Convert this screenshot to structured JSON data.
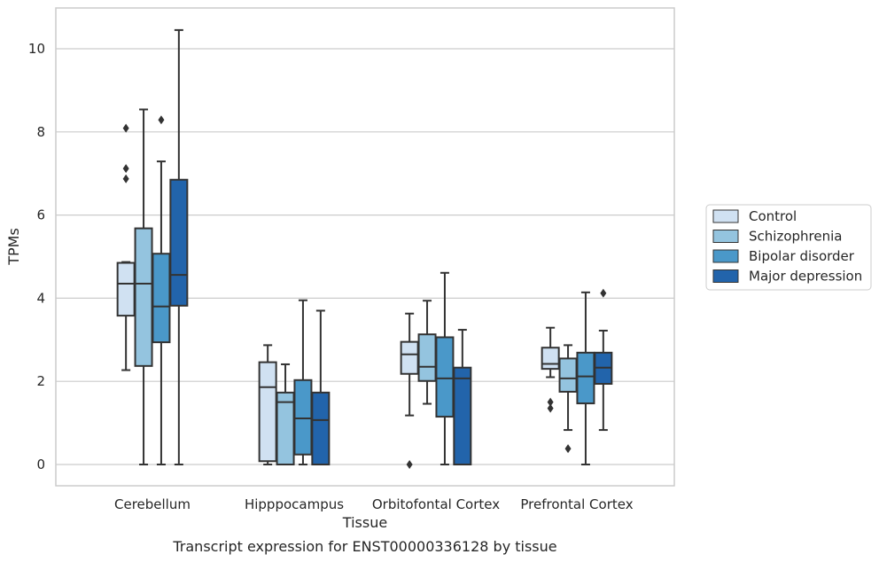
{
  "chart_data": {
    "type": "box",
    "caption": "Transcript expression for ENST00000336128 by tissue",
    "xlabel": "Tissue",
    "ylabel": "TPMs",
    "ylim": [
      -0.5,
      10.95
    ],
    "yticks": [
      0,
      2,
      4,
      6,
      8,
      10
    ],
    "grid": "horizontal",
    "legend_position": "right",
    "categories": [
      "Cerebellum",
      "Hipppocampus",
      "Orbitofontal Cortex",
      "Prefrontal Cortex"
    ],
    "series": [
      {
        "name": "Control",
        "color": "#d0e1f2",
        "boxes": [
          {
            "whisker_low": 2.27,
            "q1": 3.58,
            "median": 4.35,
            "q3": 4.85,
            "whisker_high": 4.87,
            "outliers": [
              6.87,
              7.12,
              8.09
            ]
          },
          {
            "whisker_low": 0.0,
            "q1": 0.08,
            "median": 1.86,
            "q3": 2.46,
            "whisker_high": 2.87,
            "outliers": []
          },
          {
            "whisker_low": 1.18,
            "q1": 2.18,
            "median": 2.65,
            "q3": 2.95,
            "whisker_high": 3.63,
            "outliers": [
              0.0
            ]
          },
          {
            "whisker_low": 2.1,
            "q1": 2.3,
            "median": 2.42,
            "q3": 2.81,
            "whisker_high": 3.29,
            "outliers": [
              1.35,
              1.5
            ]
          }
        ]
      },
      {
        "name": "Schizophrenia",
        "color": "#94c4df",
        "boxes": [
          {
            "whisker_low": 0.0,
            "q1": 2.37,
            "median": 4.35,
            "q3": 5.68,
            "whisker_high": 8.54,
            "outliers": []
          },
          {
            "whisker_low": 0.0,
            "q1": 0.0,
            "median": 1.5,
            "q3": 1.73,
            "whisker_high": 2.41,
            "outliers": []
          },
          {
            "whisker_low": 1.46,
            "q1": 2.01,
            "median": 2.35,
            "q3": 3.13,
            "whisker_high": 3.94,
            "outliers": []
          },
          {
            "whisker_low": 0.83,
            "q1": 1.75,
            "median": 2.07,
            "q3": 2.55,
            "whisker_high": 2.87,
            "outliers": [
              0.38
            ]
          }
        ]
      },
      {
        "name": "Bipolar disorder",
        "color": "#4a98c9",
        "boxes": [
          {
            "whisker_low": 0.0,
            "q1": 2.94,
            "median": 3.8,
            "q3": 5.07,
            "whisker_high": 7.29,
            "outliers": [
              8.29
            ]
          },
          {
            "whisker_low": 0.0,
            "q1": 0.24,
            "median": 1.11,
            "q3": 2.03,
            "whisker_high": 3.95,
            "outliers": []
          },
          {
            "whisker_low": 0.0,
            "q1": 1.15,
            "median": 2.07,
            "q3": 3.06,
            "whisker_high": 4.61,
            "outliers": []
          },
          {
            "whisker_low": 0.0,
            "q1": 1.47,
            "median": 2.12,
            "q3": 2.69,
            "whisker_high": 4.14,
            "outliers": []
          }
        ]
      },
      {
        "name": "Major depression",
        "color": "#2264ab",
        "boxes": [
          {
            "whisker_low": 0.0,
            "q1": 3.82,
            "median": 4.56,
            "q3": 6.85,
            "whisker_high": 10.45,
            "outliers": []
          },
          {
            "whisker_low": 0.0,
            "q1": 0.0,
            "median": 1.07,
            "q3": 1.73,
            "whisker_high": 3.7,
            "outliers": []
          },
          {
            "whisker_low": 0.0,
            "q1": 0.0,
            "median": 2.07,
            "q3": 2.33,
            "whisker_high": 3.24,
            "outliers": []
          },
          {
            "whisker_low": 0.83,
            "q1": 1.94,
            "median": 2.33,
            "q3": 2.69,
            "whisker_high": 3.22,
            "outliers": [
              4.12
            ]
          }
        ]
      }
    ]
  }
}
